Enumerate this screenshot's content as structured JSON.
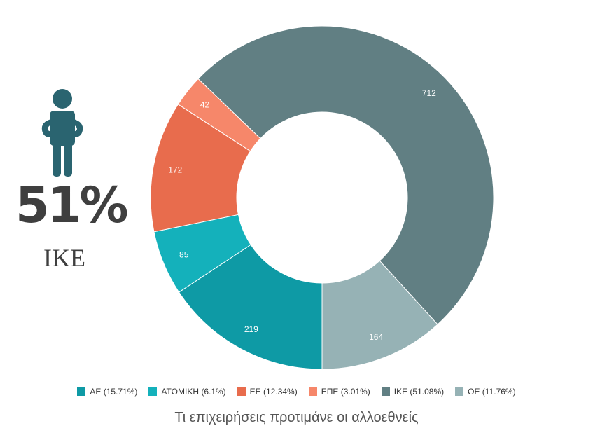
{
  "kpi": {
    "value": "51%",
    "label": "IKE"
  },
  "chart_data": {
    "type": "pie",
    "donut": true,
    "categories": [
      "ΑΕ",
      "ΑΤΟΜΙΚΗ",
      "ΕΕ",
      "ΕΠΕ",
      "ΙΚΕ",
      "ΟΕ"
    ],
    "values": [
      219,
      85,
      172,
      42,
      712,
      164
    ],
    "legend_labels": [
      "ΑΕ (15.71%)",
      "ΑΤΟΜΙΚΗ (6.1%)",
      "ΕΕ (12.34%)",
      "ΕΠΕ (3.01%)",
      "ΙΚΕ (51.08%)",
      "ΟΕ (11.76%)"
    ],
    "colors": [
      "#0e9aa5",
      "#14b1bb",
      "#e86c4d",
      "#f6876a",
      "#617f83",
      "#96b2b5"
    ],
    "data_labels": [
      "219",
      "85",
      "172",
      "42",
      "712",
      "164"
    ],
    "legend_position": "bottom",
    "title": "Τι επιχειρήσεις προτιμάνε οι αλλοεθνείς"
  },
  "colors": {
    "person_icon": "#2a6470",
    "text_dark": "#3f3f3f"
  }
}
